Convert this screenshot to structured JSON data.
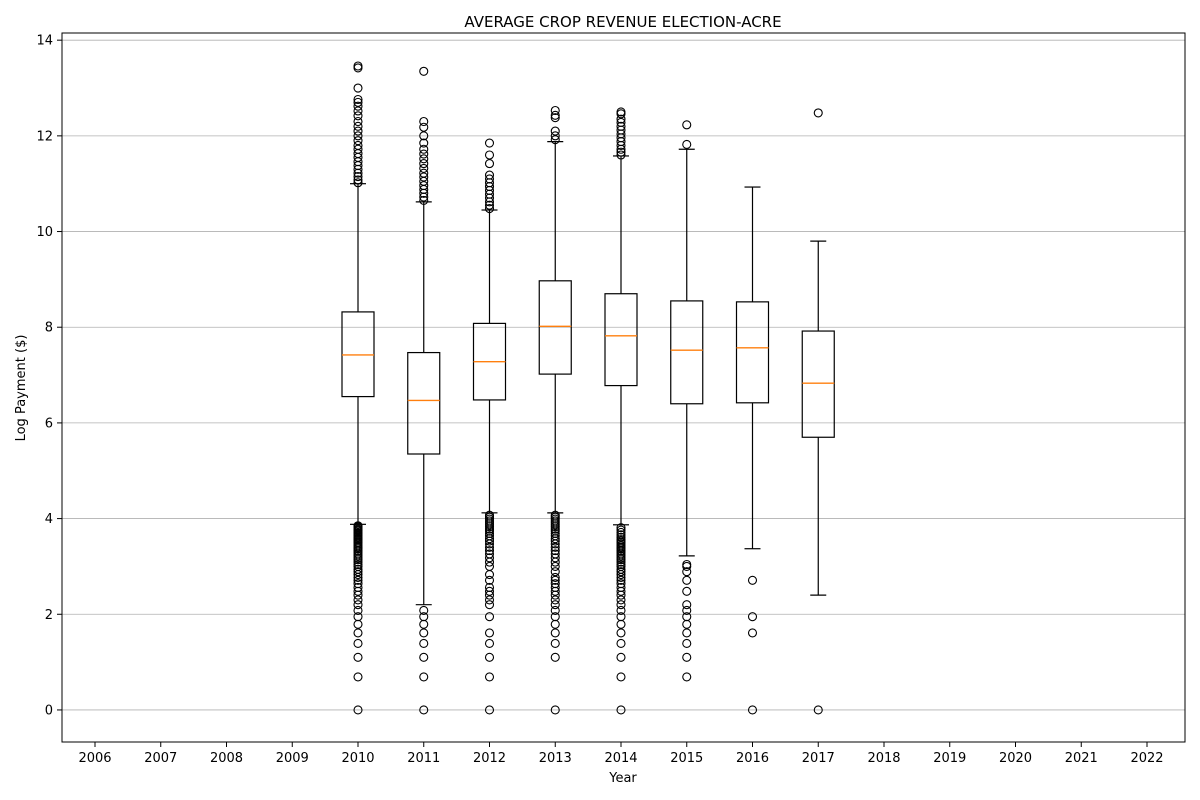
{
  "chart_data": {
    "type": "boxplot",
    "title": "AVERAGE CROP REVENUE ELECTION-ACRE",
    "xlabel": "Year",
    "ylabel": "Log Payment ($)",
    "x_categories": [
      "2006",
      "2007",
      "2008",
      "2009",
      "2010",
      "2011",
      "2012",
      "2013",
      "2014",
      "2015",
      "2016",
      "2017",
      "2018",
      "2019",
      "2020",
      "2021",
      "2022"
    ],
    "ylim": [
      -0.67,
      14.15
    ],
    "yticks": [
      0,
      2,
      4,
      6,
      8,
      10,
      12,
      14
    ],
    "grid": "y",
    "boxes": [
      {
        "year": "2010",
        "whisker_low": 3.88,
        "q1": 6.55,
        "median": 7.42,
        "q3": 8.32,
        "whisker_high": 11.0,
        "fliers": [
          0,
          0.69,
          1.1,
          1.39,
          1.61,
          1.79,
          1.95,
          2.08,
          2.2,
          2.3,
          2.4,
          2.48,
          2.56,
          2.64,
          2.71,
          2.77,
          2.83,
          2.89,
          2.94,
          3.0,
          3.04,
          3.09,
          3.14,
          3.18,
          3.22,
          3.26,
          3.3,
          3.33,
          3.37,
          3.4,
          3.43,
          3.47,
          3.5,
          3.53,
          3.56,
          3.58,
          3.61,
          3.64,
          3.66,
          3.69,
          3.71,
          3.74,
          3.76,
          3.78,
          3.81,
          3.83,
          3.85,
          11.02,
          11.08,
          11.15,
          11.22,
          11.3,
          11.38,
          11.46,
          11.55,
          11.63,
          11.72,
          11.8,
          11.9,
          12.0,
          12.1,
          12.2,
          12.3,
          12.42,
          12.52,
          12.62,
          12.7,
          12.76,
          13.0,
          13.42,
          13.46
        ]
      },
      {
        "year": "2011",
        "whisker_low": 2.2,
        "q1": 5.35,
        "median": 6.47,
        "q3": 7.47,
        "whisker_high": 10.62,
        "fliers": [
          0,
          0.69,
          1.1,
          1.39,
          1.61,
          1.79,
          1.95,
          2.08,
          10.65,
          10.72,
          10.8,
          10.88,
          10.96,
          11.05,
          11.14,
          11.22,
          11.32,
          11.42,
          11.52,
          11.62,
          11.72,
          11.85,
          12.0,
          12.18,
          12.3,
          13.35
        ]
      },
      {
        "year": "2012",
        "whisker_low": 4.12,
        "q1": 6.48,
        "median": 7.28,
        "q3": 8.08,
        "whisker_high": 10.45,
        "fliers": [
          0,
          0.69,
          1.1,
          1.39,
          1.61,
          1.95,
          2.2,
          2.3,
          2.4,
          2.48,
          2.56,
          2.71,
          2.83,
          3.0,
          3.09,
          3.18,
          3.26,
          3.33,
          3.4,
          3.47,
          3.53,
          3.58,
          3.64,
          3.69,
          3.74,
          3.78,
          3.83,
          3.87,
          3.91,
          3.95,
          3.99,
          4.03,
          4.07,
          10.48,
          10.55,
          10.62,
          10.7,
          10.78,
          10.86,
          10.94,
          11.02,
          11.1,
          11.18,
          11.42,
          11.6,
          11.85
        ]
      },
      {
        "year": "2013",
        "whisker_low": 4.12,
        "q1": 7.02,
        "median": 8.02,
        "q3": 8.97,
        "whisker_high": 11.88,
        "fliers": [
          0,
          1.1,
          1.39,
          1.61,
          1.79,
          1.95,
          2.08,
          2.2,
          2.3,
          2.4,
          2.48,
          2.56,
          2.64,
          2.71,
          2.77,
          2.89,
          3.0,
          3.09,
          3.18,
          3.26,
          3.33,
          3.4,
          3.47,
          3.53,
          3.58,
          3.64,
          3.69,
          3.74,
          3.78,
          3.83,
          3.87,
          3.91,
          3.95,
          3.99,
          4.03,
          4.07,
          11.92,
          12.0,
          12.1,
          12.38,
          12.43,
          12.53
        ]
      },
      {
        "year": "2014",
        "whisker_low": 3.87,
        "q1": 6.78,
        "median": 7.82,
        "q3": 8.7,
        "whisker_high": 11.58,
        "fliers": [
          0,
          0.69,
          1.1,
          1.39,
          1.61,
          1.79,
          1.95,
          2.08,
          2.2,
          2.3,
          2.4,
          2.48,
          2.56,
          2.64,
          2.71,
          2.77,
          2.83,
          2.89,
          2.94,
          3.0,
          3.04,
          3.09,
          3.14,
          3.18,
          3.22,
          3.26,
          3.3,
          3.33,
          3.37,
          3.4,
          3.43,
          3.47,
          3.5,
          3.53,
          3.56,
          3.61,
          3.66,
          3.71,
          3.76,
          3.81,
          11.6,
          11.66,
          11.72,
          11.8,
          11.88,
          11.96,
          12.04,
          12.12,
          12.2,
          12.28,
          12.35,
          12.46,
          12.5
        ]
      },
      {
        "year": "2015",
        "whisker_low": 3.22,
        "q1": 6.4,
        "median": 7.52,
        "q3": 8.55,
        "whisker_high": 11.72,
        "fliers": [
          0.69,
          1.1,
          1.39,
          1.61,
          1.79,
          1.95,
          2.08,
          2.2,
          2.48,
          2.71,
          2.89,
          3.0,
          3.04,
          11.82,
          12.23
        ]
      },
      {
        "year": "2016",
        "whisker_low": 3.37,
        "q1": 6.42,
        "median": 7.57,
        "q3": 8.53,
        "whisker_high": 10.93,
        "fliers": [
          0,
          1.61,
          1.95,
          2.71
        ]
      },
      {
        "year": "2017",
        "whisker_low": 2.4,
        "q1": 5.7,
        "median": 6.83,
        "q3": 7.92,
        "whisker_high": 9.8,
        "fliers": [
          0,
          12.48
        ]
      }
    ],
    "colors": {
      "median": "#ff7f0e",
      "box": "#000000",
      "grid": "#b0b0b0"
    }
  }
}
